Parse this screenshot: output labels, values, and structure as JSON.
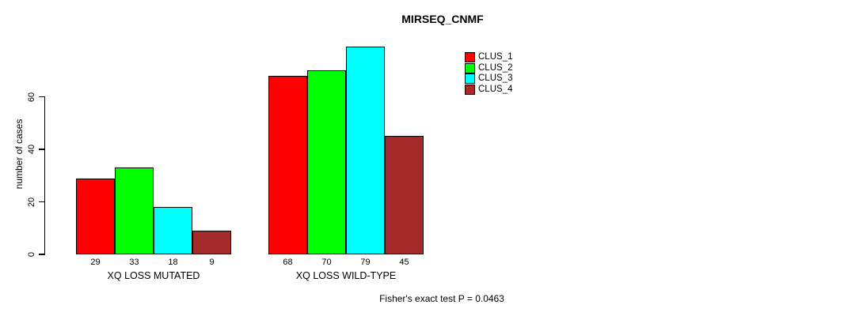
{
  "chart_data": {
    "type": "bar",
    "title": "MIRSEQ_CNMF",
    "ylabel": "number of cases",
    "xlabel": "",
    "categories": [
      "XQ LOSS MUTATED",
      "XQ LOSS WILD-TYPE"
    ],
    "series": [
      {
        "name": "CLUS_1",
        "color": "#ff0000",
        "values": [
          29,
          68
        ]
      },
      {
        "name": "CLUS_2",
        "color": "#00ff00",
        "values": [
          33,
          70
        ]
      },
      {
        "name": "CLUS_3",
        "color": "#00ffff",
        "values": [
          18,
          79
        ]
      },
      {
        "name": "CLUS_4",
        "color": "#a52a2a",
        "values": [
          9,
          45
        ]
      }
    ],
    "yticks": [
      0,
      20,
      40,
      60
    ],
    "ylim": [
      0,
      80
    ],
    "bar_value_labels_shown": true,
    "legend_position": "top-right",
    "grid": false,
    "annotation": "Fisher's exact test P = 0.0463"
  },
  "colors": {
    "background": "#ffffff",
    "axis": "#000000",
    "text": "#000000",
    "bar_border": "#000000"
  }
}
